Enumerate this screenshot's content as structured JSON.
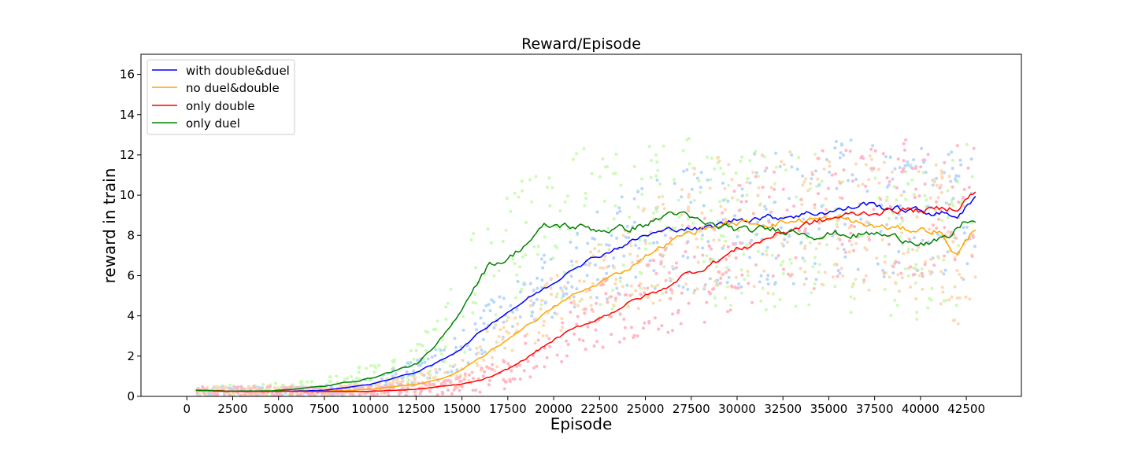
{
  "chart_data": {
    "type": "line",
    "title": "Reward/Episode",
    "xlabel": "Episode",
    "ylabel": "reward in train",
    "xlim": [
      -2500,
      45500
    ],
    "ylim": [
      0,
      17
    ],
    "xticks": [
      0,
      2500,
      5000,
      7500,
      10000,
      12500,
      15000,
      17500,
      20000,
      22500,
      25000,
      27500,
      30000,
      32500,
      35000,
      37500,
      40000,
      42500
    ],
    "yticks": [
      0,
      2,
      4,
      6,
      8,
      10,
      12,
      14,
      16
    ],
    "grid": false,
    "legend_position": "top-left",
    "series": [
      {
        "name": "with double&duel",
        "color": "#0000ff",
        "scatter_color": "#b9d7f9",
        "x": [
          500,
          2500,
          5000,
          7500,
          10000,
          12500,
          13500,
          15000,
          16000,
          17000,
          18000,
          19000,
          20000,
          21000,
          22000,
          23000,
          24000,
          25000,
          26000,
          27000,
          28000,
          29000,
          30000,
          31000,
          32000,
          33000,
          34000,
          35000,
          36000,
          37000,
          38000,
          39000,
          40000,
          41000,
          42000,
          43000
        ],
        "y": [
          0.3,
          0.25,
          0.25,
          0.3,
          0.6,
          1.2,
          1.6,
          2.4,
          3.2,
          3.9,
          4.5,
          5.1,
          5.6,
          6.4,
          6.8,
          7.2,
          7.6,
          8.0,
          8.2,
          8.4,
          8.3,
          8.5,
          8.8,
          8.9,
          8.9,
          9.0,
          9.1,
          9.2,
          9.3,
          9.6,
          9.4,
          9.3,
          9.2,
          9.1,
          9.0,
          9.8
        ],
        "noise_amp": [
          0.2,
          0.2,
          0.2,
          0.2,
          0.3,
          0.5,
          0.6,
          0.8,
          1.0,
          1.1,
          1.2,
          1.3,
          1.4,
          1.6,
          1.7,
          1.9,
          2.0,
          2.2,
          2.3,
          2.4,
          2.6,
          2.8,
          2.8,
          2.8,
          2.8,
          2.8,
          2.8,
          2.8,
          2.8,
          2.8,
          2.8,
          2.8,
          2.8,
          2.8,
          2.8,
          2.8
        ]
      },
      {
        "name": "no duel&double",
        "color": "#ffa500",
        "scatter_color": "#fdd9b5",
        "x": [
          500,
          2500,
          5000,
          7500,
          10000,
          12500,
          14000,
          15000,
          16000,
          17000,
          18000,
          19000,
          20000,
          21000,
          22000,
          23000,
          24000,
          25000,
          26000,
          27000,
          28000,
          29000,
          30000,
          31000,
          32000,
          33000,
          34000,
          35000,
          36000,
          37000,
          38000,
          39000,
          40000,
          41000,
          42000,
          43000
        ],
        "y": [
          0.3,
          0.25,
          0.25,
          0.25,
          0.35,
          0.6,
          0.9,
          1.3,
          1.9,
          2.5,
          3.2,
          3.8,
          4.4,
          5.0,
          5.4,
          5.9,
          6.3,
          7.0,
          7.5,
          8.0,
          8.3,
          8.5,
          8.6,
          8.6,
          8.6,
          8.7,
          8.8,
          8.8,
          8.8,
          8.5,
          8.4,
          8.3,
          8.3,
          8.2,
          7.0,
          8.4
        ],
        "noise_amp": [
          0.2,
          0.2,
          0.2,
          0.2,
          0.25,
          0.35,
          0.5,
          0.7,
          0.9,
          1.0,
          1.1,
          1.2,
          1.3,
          1.4,
          1.5,
          1.6,
          1.8,
          2.0,
          2.2,
          2.4,
          2.6,
          2.7,
          2.8,
          2.8,
          2.8,
          2.8,
          2.8,
          2.8,
          2.8,
          2.8,
          2.8,
          2.8,
          2.8,
          2.8,
          2.8,
          2.8
        ]
      },
      {
        "name": "only double",
        "color": "#ff0000",
        "scatter_color": "#ffb8c5",
        "x": [
          500,
          2500,
          5000,
          7500,
          10000,
          12500,
          15000,
          16000,
          17000,
          18000,
          19000,
          20000,
          21000,
          22000,
          23000,
          24000,
          25000,
          26000,
          27000,
          28000,
          29000,
          30000,
          31000,
          32000,
          33000,
          34000,
          35000,
          36000,
          37000,
          38000,
          39000,
          40000,
          41000,
          42000,
          43000
        ],
        "y": [
          0.3,
          0.25,
          0.25,
          0.25,
          0.25,
          0.35,
          0.6,
          0.8,
          1.1,
          1.6,
          2.2,
          2.8,
          3.3,
          3.7,
          4.1,
          4.6,
          5.0,
          5.3,
          6.0,
          6.3,
          6.8,
          7.3,
          7.6,
          8.0,
          8.3,
          8.6,
          8.8,
          9.0,
          9.1,
          9.2,
          9.3,
          9.2,
          9.3,
          9.4,
          10.2
        ],
        "noise_amp": [
          0.2,
          0.2,
          0.2,
          0.2,
          0.2,
          0.25,
          0.4,
          0.5,
          0.7,
          0.9,
          1.0,
          1.1,
          1.2,
          1.3,
          1.4,
          1.5,
          1.6,
          1.8,
          2.0,
          2.2,
          2.4,
          2.6,
          2.8,
          2.8,
          2.8,
          2.8,
          2.8,
          2.8,
          2.8,
          2.8,
          2.8,
          2.8,
          2.8,
          2.8,
          2.8
        ]
      },
      {
        "name": "only duel",
        "color": "#008000",
        "scatter_color": "#ccfbb6",
        "x": [
          500,
          2500,
          5000,
          7500,
          10000,
          12500,
          13500,
          14500,
          15500,
          16500,
          17500,
          18500,
          19500,
          20500,
          21500,
          22500,
          23500,
          24500,
          25500,
          26500,
          27500,
          28500,
          29500,
          30500,
          31500,
          32500,
          33500,
          34500,
          35500,
          36500,
          37500,
          38500,
          39500,
          40500,
          41500,
          42500,
          43000
        ],
        "y": [
          0.3,
          0.25,
          0.3,
          0.5,
          0.9,
          1.6,
          2.4,
          3.6,
          5.2,
          6.6,
          6.8,
          7.6,
          8.4,
          8.5,
          8.4,
          8.3,
          8.3,
          8.4,
          8.7,
          9.2,
          8.8,
          8.5,
          8.4,
          8.2,
          8.3,
          8.3,
          8.2,
          8.0,
          8.1,
          8.0,
          8.1,
          7.9,
          7.8,
          7.6,
          7.8,
          8.8,
          8.6
        ],
        "noise_amp": [
          0.25,
          0.25,
          0.3,
          0.4,
          0.6,
          0.9,
          1.2,
          1.6,
          2.2,
          2.6,
          2.8,
          3.0,
          3.2,
          3.2,
          3.2,
          3.2,
          3.2,
          3.2,
          3.2,
          3.2,
          3.2,
          3.2,
          3.2,
          3.2,
          3.2,
          3.2,
          3.2,
          3.2,
          3.2,
          3.2,
          3.2,
          3.2,
          3.2,
          3.2,
          3.2,
          3.2,
          3.2
        ]
      }
    ]
  }
}
